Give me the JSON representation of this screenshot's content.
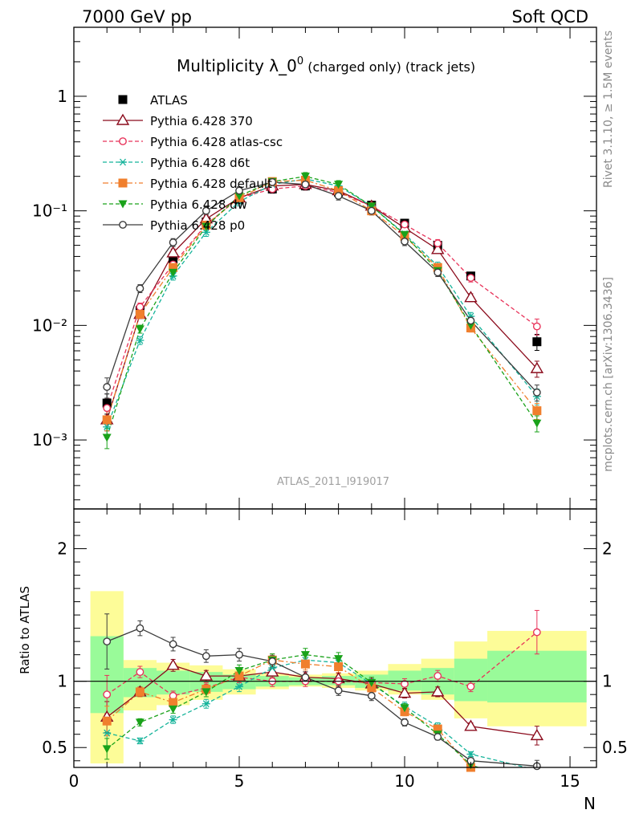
{
  "header": {
    "left": "7000 GeV pp",
    "right": "Soft QCD",
    "title_main": "Multiplicity λ_0",
    "title_sup": "0",
    "title_rest": " (charged only) (track jets)",
    "side_top": "Rivet 3.1.10, ≥ 1.5M events",
    "side_bottom": "mcplots.cern.ch [arXiv:1306.3436]",
    "watermark": "ATLAS_2011_I919017"
  },
  "chart_data": [
    {
      "type": "scatter",
      "panel": "main",
      "xlim": [
        0,
        15.8
      ],
      "ylim": [
        0.00025,
        4.0
      ],
      "yscale": "log",
      "ytick_labels": [
        "10⁻³",
        "10⁻²",
        "10⁻¹",
        "1"
      ],
      "legend_placement": "top-left",
      "x": [
        1,
        2,
        3,
        4,
        5,
        6,
        7,
        8,
        9,
        10,
        11,
        12,
        14
      ],
      "series": [
        {
          "name": "ATLAS",
          "color": "#000000",
          "marker": "filled-square",
          "line": "none",
          "values": [
            0.0021,
            0.0135,
            0.038,
            0.08,
            0.125,
            0.155,
            0.165,
            0.145,
            0.112,
            0.078,
            0.05,
            0.027,
            0.0072
          ]
        },
        {
          "name": "Pythia 6.428 370",
          "color": "#8b0b1c",
          "marker": "open-triangle",
          "line": "solid",
          "values": [
            0.0015,
            0.0125,
            0.043,
            0.085,
            0.13,
            0.165,
            0.17,
            0.15,
            0.11,
            0.071,
            0.046,
            0.0175,
            0.0042
          ]
        },
        {
          "name": "Pythia 6.428 atlas-csc",
          "color": "#e8335a",
          "marker": "open-circle",
          "line": "dashed",
          "values": [
            0.0019,
            0.0145,
            0.034,
            0.076,
            0.13,
            0.155,
            0.165,
            0.145,
            0.11,
            0.076,
            0.052,
            0.026,
            0.0098
          ]
        },
        {
          "name": "Pythia 6.428 d6t",
          "color": "#14b39a",
          "marker": "asterisk",
          "line": "dashed",
          "values": [
            0.0013,
            0.0074,
            0.027,
            0.065,
            0.12,
            0.17,
            0.19,
            0.165,
            0.11,
            0.063,
            0.033,
            0.012,
            0.0024
          ]
        },
        {
          "name": "Pythia 6.428 default",
          "color": "#f07f2d",
          "marker": "filled-square",
          "line": "dash-dot",
          "values": [
            0.0015,
            0.0125,
            0.032,
            0.075,
            0.13,
            0.18,
            0.185,
            0.15,
            0.1,
            0.06,
            0.032,
            0.0095,
            0.0018
          ]
        },
        {
          "name": "Pythia 6.428 dw",
          "color": "#1aa21a",
          "marker": "filled-triangle-down",
          "line": "dashed",
          "values": [
            0.00105,
            0.0093,
            0.029,
            0.073,
            0.135,
            0.18,
            0.2,
            0.17,
            0.11,
            0.062,
            0.03,
            0.01,
            0.0014
          ]
        },
        {
          "name": "Pythia 6.428 p0",
          "color": "#3c3c3c",
          "marker": "open-circle",
          "line": "solid",
          "values": [
            0.0029,
            0.021,
            0.053,
            0.1,
            0.15,
            0.178,
            0.17,
            0.135,
            0.1,
            0.054,
            0.029,
            0.011,
            0.0026
          ]
        }
      ]
    },
    {
      "type": "line",
      "panel": "ratio",
      "ylabel": "Ratio to ATLAS",
      "xlabel": "N",
      "xlim": [
        0,
        15.8
      ],
      "ylim": [
        0.35,
        2.3
      ],
      "x_ticks": [
        0,
        5,
        10,
        15
      ],
      "y_ticks": [
        0.5,
        1,
        2
      ],
      "uncertainty_bands": {
        "bin_edges": [
          0.5,
          1.5,
          2.5,
          3.5,
          4.5,
          5.5,
          6.5,
          7.5,
          8.5,
          9.5,
          10.5,
          11.5,
          12.5,
          15.5
        ],
        "yellow": [
          [
            0.38,
            1.68
          ],
          [
            0.78,
            1.16
          ],
          [
            0.82,
            1.14
          ],
          [
            0.86,
            1.12
          ],
          [
            0.9,
            1.09
          ],
          [
            0.94,
            1.06
          ],
          [
            0.96,
            1.05
          ],
          [
            0.95,
            1.06
          ],
          [
            0.93,
            1.08
          ],
          [
            0.9,
            1.13
          ],
          [
            0.86,
            1.17
          ],
          [
            0.72,
            1.3
          ],
          [
            0.66,
            1.38
          ]
        ],
        "green": [
          [
            0.76,
            1.34
          ],
          [
            0.88,
            1.1
          ],
          [
            0.9,
            1.08
          ],
          [
            0.92,
            1.07
          ],
          [
            0.94,
            1.05
          ],
          [
            0.96,
            1.04
          ],
          [
            0.97,
            1.03
          ],
          [
            0.97,
            1.04
          ],
          [
            0.95,
            1.05
          ],
          [
            0.93,
            1.08
          ],
          [
            0.9,
            1.1
          ],
          [
            0.85,
            1.17
          ],
          [
            0.84,
            1.23
          ]
        ]
      },
      "x": [
        1,
        2,
        3,
        4,
        5,
        6,
        7,
        8,
        9,
        10,
        11,
        12,
        14
      ],
      "series": [
        {
          "name": "Pythia 6.428 370",
          "color": "#8b0b1c",
          "marker": "open-triangle",
          "line": "solid",
          "values": [
            0.73,
            0.92,
            1.12,
            1.04,
            1.04,
            1.07,
            1.03,
            1.02,
            0.98,
            0.91,
            0.92,
            0.66,
            0.59
          ]
        },
        {
          "name": "Pythia 6.428 atlas-csc",
          "color": "#e8335a",
          "marker": "open-circle",
          "line": "dashed",
          "values": [
            0.9,
            1.07,
            0.89,
            0.95,
            1.03,
            1.0,
            1.0,
            1.0,
            0.99,
            0.98,
            1.04,
            0.96,
            1.37
          ]
        },
        {
          "name": "Pythia 6.428 d6t",
          "color": "#14b39a",
          "marker": "asterisk",
          "line": "dashed",
          "values": [
            0.61,
            0.55,
            0.71,
            0.83,
            0.96,
            1.1,
            1.16,
            1.14,
            0.98,
            0.81,
            0.66,
            0.45,
            0.33
          ]
        },
        {
          "name": "Pythia 6.428 default",
          "color": "#f07f2d",
          "marker": "filled-square",
          "line": "dash-dot",
          "values": [
            0.7,
            0.92,
            0.84,
            0.94,
            1.04,
            1.16,
            1.13,
            1.11,
            0.95,
            0.77,
            0.64,
            0.35,
            0.25
          ]
        },
        {
          "name": "Pythia 6.428 dw",
          "color": "#1aa21a",
          "marker": "filled-triangle-down",
          "line": "dashed",
          "values": [
            0.49,
            0.69,
            0.79,
            0.92,
            1.08,
            1.16,
            1.2,
            1.17,
            0.99,
            0.8,
            0.6,
            0.37,
            0.19
          ]
        },
        {
          "name": "Pythia 6.428 p0",
          "color": "#3c3c3c",
          "marker": "open-circle",
          "line": "solid",
          "values": [
            1.3,
            1.4,
            1.28,
            1.19,
            1.2,
            1.15,
            1.03,
            0.93,
            0.89,
            0.69,
            0.58,
            0.4,
            0.36
          ]
        }
      ]
    }
  ]
}
